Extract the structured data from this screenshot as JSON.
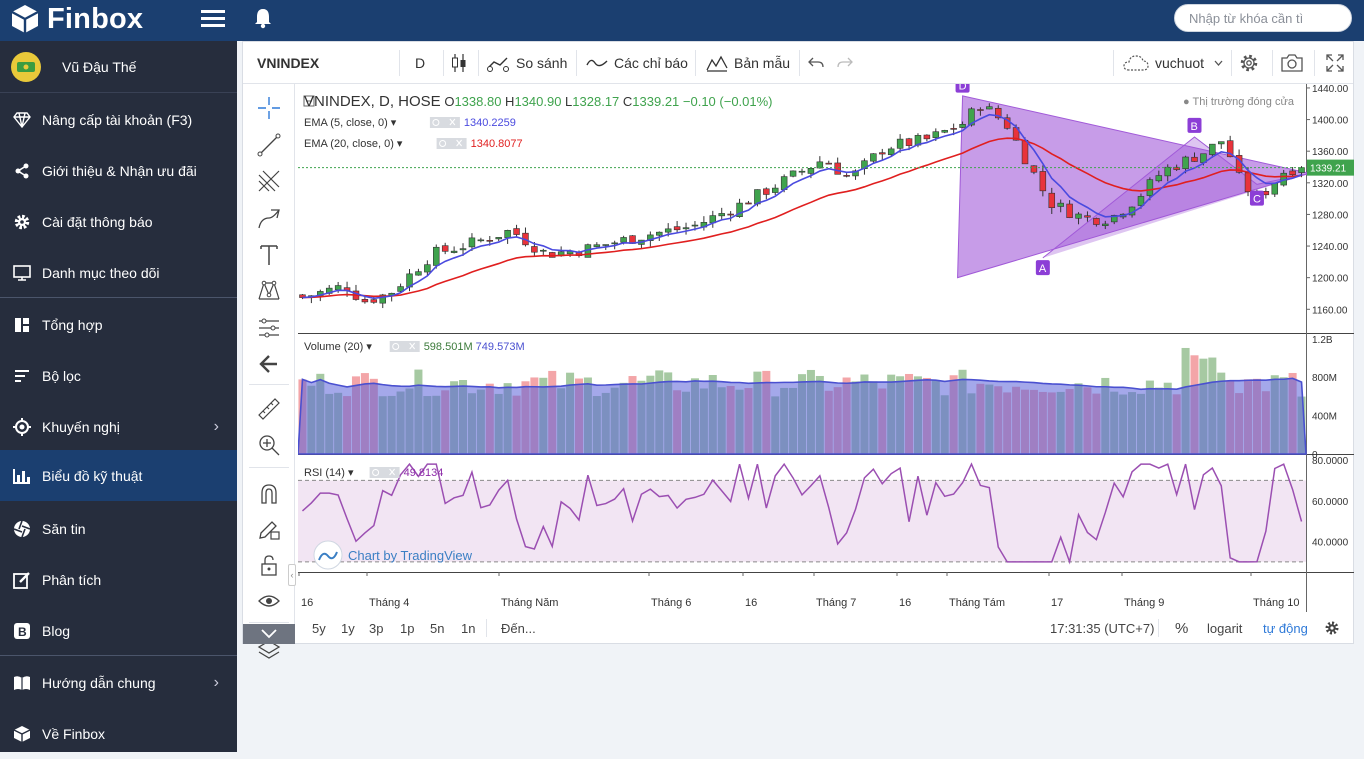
{
  "app": {
    "brand": "Finbox",
    "search_placeholder": "Nhập từ khóa cần tì"
  },
  "sidebar": {
    "user": "Vũ Đậu Thế",
    "items": [
      {
        "label": "Nâng cấp tài khoản (F3)",
        "icon": "diamond-icon"
      },
      {
        "label": "Giới thiệu & Nhận ưu đãi",
        "icon": "share-icon"
      },
      {
        "label": "Cài đặt thông báo",
        "icon": "gear-icon"
      },
      {
        "label": "Danh mục theo dõi",
        "icon": "monitor-icon"
      },
      {
        "label": "Tổng hợp",
        "icon": "dashboard-icon"
      },
      {
        "label": "Bộ lọc",
        "icon": "filter-icon"
      },
      {
        "label": "Khuyến nghị",
        "icon": "target-icon"
      },
      {
        "label": "Biểu đồ kỹ thuật",
        "icon": "bar-chart-icon"
      },
      {
        "label": "Săn tin",
        "icon": "aperture-icon"
      },
      {
        "label": "Phân tích",
        "icon": "edit-icon"
      },
      {
        "label": "Blog",
        "icon": "blog-icon"
      },
      {
        "label": "Hướng dẫn chung",
        "icon": "book-icon"
      },
      {
        "label": "Về Finbox",
        "icon": "cube-icon"
      }
    ]
  },
  "toolbar": {
    "symbol": "VNINDEX",
    "interval": "D",
    "compare": "So sánh",
    "indicators": "Các chỉ báo",
    "templates": "Bản mẫu",
    "user": "vuchuot"
  },
  "legend": {
    "title": "VNINDEX, D, HOSE",
    "o_label": "O",
    "o": "1338.80",
    "h_label": "H",
    "h": "1340.90",
    "l_label": "L",
    "l": "1328.17",
    "c_label": "C",
    "c": "1339.21",
    "change": "−0.10 (−0.01%)",
    "market_status": "Thị trường đóng cửa",
    "ema5_label": "EMA (5, close, 0)",
    "ema5_value": "1340.2259",
    "ema20_label": "EMA (20, close, 0)",
    "ema20_value": "1340.8077",
    "volume_label": "Volume (20)",
    "volume_v1": "598.501M",
    "volume_v2": "749.573M",
    "rsi_label": "RSI (14)",
    "rsi_value": "49.8134"
  },
  "price_axis": {
    "ticks": [
      "1440.00",
      "1400.00",
      "1360.00",
      "1320.00",
      "1280.00",
      "1240.00",
      "1200.00",
      "1160.00"
    ],
    "last": "1339.21"
  },
  "volume_axis": {
    "ticks": [
      "1.2B",
      "800M",
      "400M",
      "0"
    ]
  },
  "rsi_axis": {
    "ticks": [
      "80.0000",
      "60.0000",
      "40.0000"
    ]
  },
  "time_axis": [
    "16",
    "Tháng 4",
    "Tháng Năm",
    "Tháng 6",
    "16",
    "Tháng 7",
    "16",
    "Tháng Tám",
    "17",
    "Tháng 9",
    "Tháng 10"
  ],
  "pattern_labels": [
    "D",
    "A",
    "B",
    "C"
  ],
  "watermark": "Chart by TradingView",
  "bottombar": {
    "ranges": [
      "5y",
      "1y",
      "3p",
      "1p",
      "5n",
      "1n"
    ],
    "goto": "Đến...",
    "time": "17:31:35 (UTC+7)",
    "percent": "%",
    "log": "logarit",
    "auto": "tự động"
  },
  "colors": {
    "up": "#3fa34d",
    "down": "#e8333b",
    "ema5": "#4a4adf",
    "ema20": "#e01f1f",
    "pattern": "#a15ad8",
    "rsi": "#9b4fb2",
    "accent": "#1b3f70"
  },
  "chart_data": {
    "type": "candlestick",
    "symbol": "VNINDEX",
    "ema5": 1340.2259,
    "ema20": 1340.8077,
    "last_close": 1339.21,
    "rsi": 49.8134,
    "price_ylim": [
      1130,
      1445
    ],
    "rsi_ylim": [
      25,
      82
    ],
    "volume_ylim": [
      0,
      1240
    ],
    "volume": 598.501,
    "volume_ma": 749.573
  }
}
